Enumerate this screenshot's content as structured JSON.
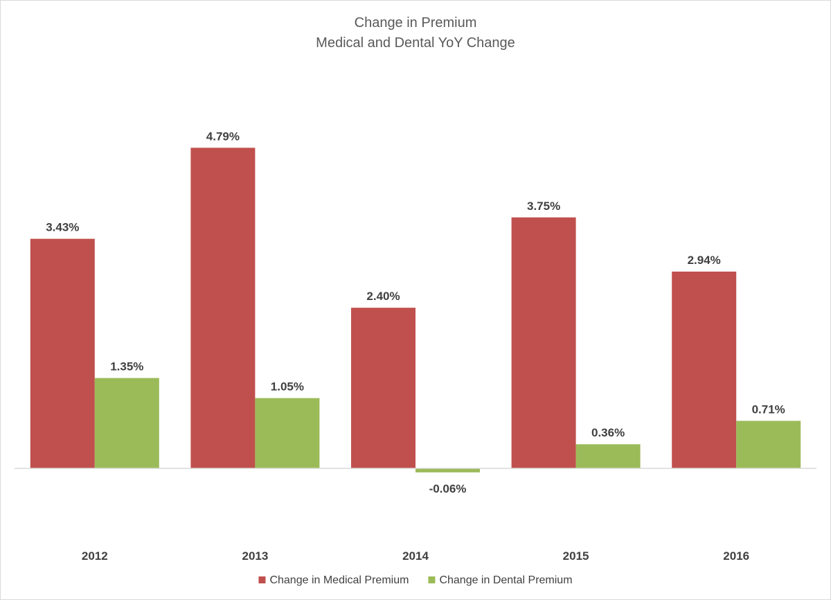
{
  "chart_data": {
    "type": "bar",
    "title": "Change in Premium",
    "subtitle": "Medical and Dental YoY Change",
    "categories": [
      "2012",
      "2013",
      "2014",
      "2015",
      "2016"
    ],
    "series": [
      {
        "name": "Change in Medical Premium",
        "color": "#c0504d",
        "values": [
          3.43,
          4.79,
          2.4,
          3.75,
          2.94
        ],
        "labels": [
          "3.43%",
          "4.79%",
          "2.40%",
          "3.75%",
          "2.94%"
        ]
      },
      {
        "name": "Change in Dental Premium",
        "color": "#9bbb59",
        "values": [
          1.35,
          1.05,
          -0.06,
          0.36,
          0.71
        ],
        "labels": [
          "1.35%",
          "1.05%",
          "-0.06%",
          "0.36%",
          "0.71%"
        ]
      }
    ],
    "xlabel": "",
    "ylabel": "",
    "ylim": [
      -0.5,
      5.5
    ],
    "grid": false,
    "legend": "bottom-center"
  }
}
